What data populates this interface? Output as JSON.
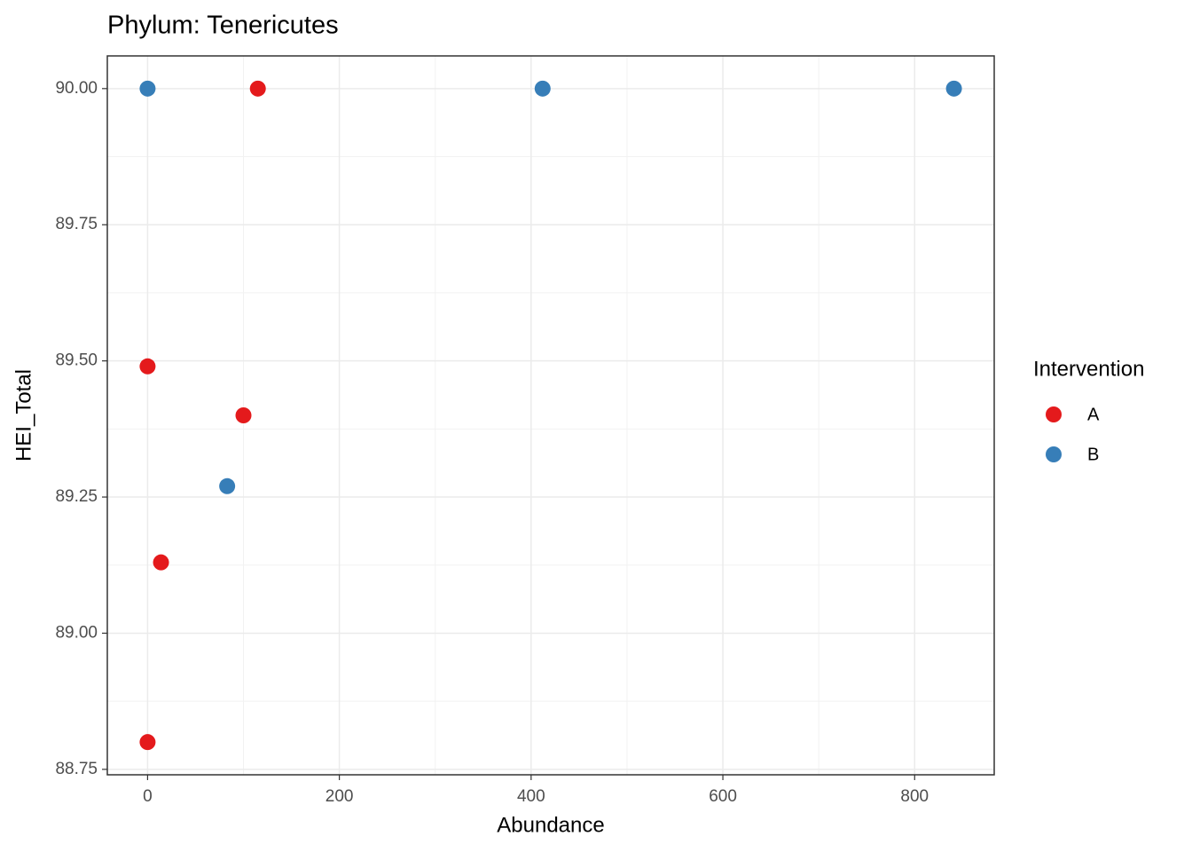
{
  "chart_data": {
    "type": "scatter",
    "title": "Phylum: Tenericutes",
    "x_label": "Abundance",
    "y_label": "HEI_Total",
    "legend_title": "Intervention",
    "legend_position": "right",
    "grid": true,
    "xlim": [
      -42,
      883
    ],
    "ylim": [
      88.74,
      90.06
    ],
    "xticks": [
      0,
      200,
      400,
      600,
      800
    ],
    "yticks": [
      {
        "value": 88.75,
        "label": "88.75"
      },
      {
        "value": 89,
        "label": "89.00"
      },
      {
        "value": 89.25,
        "label": "89.25"
      },
      {
        "value": 89.5,
        "label": "89.50"
      },
      {
        "value": 89.75,
        "label": "89.75"
      },
      {
        "value": 90,
        "label": "90.00"
      }
    ],
    "series": [
      {
        "name": "A",
        "color": "#E41A1C",
        "x": [
          115,
          0,
          100,
          14,
          0
        ],
        "values": [
          90.0,
          89.49,
          89.4,
          89.13,
          88.8
        ]
      },
      {
        "name": "B",
        "color": "#377EB8",
        "x": [
          0,
          412,
          841,
          83
        ],
        "values": [
          90.0,
          90.0,
          90.0,
          89.27
        ]
      }
    ]
  }
}
